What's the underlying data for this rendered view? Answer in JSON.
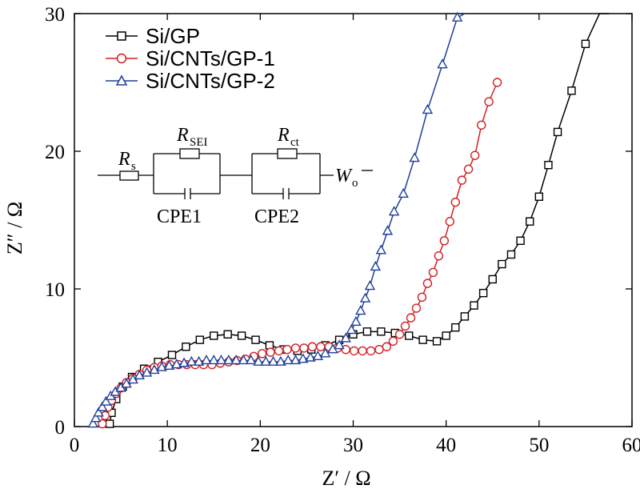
{
  "chart_data": {
    "type": "scatter",
    "xlabel": "Z′ / Ω",
    "ylabel": "Z″ / Ω",
    "xlim": [
      0,
      60
    ],
    "ylim": [
      0,
      30
    ],
    "xticks": [
      0,
      10,
      20,
      30,
      40,
      50,
      60
    ],
    "yticks": [
      0,
      10,
      20,
      30
    ],
    "legend_position": "top-left",
    "series": [
      {
        "name": "Si/GP",
        "color": "#000000",
        "marker": "square",
        "x": [
          3.8,
          4.0,
          4.5,
          5.2,
          6.2,
          7.5,
          9.0,
          10.5,
          12.0,
          13.5,
          15.0,
          16.5,
          18.0,
          19.5,
          21.0,
          22.5,
          24.0,
          25.5,
          27.0,
          28.5,
          30.0,
          31.5,
          33.0,
          34.5,
          36.0,
          37.5,
          39.0,
          40.0,
          41.0,
          42.0,
          43.0,
          44.0,
          45.0,
          46.0,
          47.0,
          48.0,
          49.0,
          50.0,
          51.0,
          52.0,
          53.5,
          55.0,
          56.5,
          57.5
        ],
        "y": [
          0.2,
          1.0,
          2.0,
          2.9,
          3.6,
          4.2,
          4.7,
          5.2,
          5.8,
          6.3,
          6.6,
          6.7,
          6.6,
          6.3,
          5.9,
          5.6,
          5.5,
          5.6,
          5.9,
          6.3,
          6.7,
          6.9,
          6.9,
          6.8,
          6.6,
          6.3,
          6.2,
          6.6,
          7.2,
          8.0,
          8.8,
          9.7,
          10.7,
          11.8,
          12.5,
          13.5,
          14.9,
          16.7,
          19.0,
          21.4,
          24.4,
          27.8,
          30.0,
          30.0
        ]
      },
      {
        "name": "Si/CNTs/GP-1",
        "color": "#d11f24",
        "marker": "circle",
        "x": [
          3.0,
          3.3,
          3.6,
          4.0,
          4.5,
          5.0,
          5.6,
          6.3,
          7.0,
          7.8,
          8.6,
          9.4,
          10.3,
          11.2,
          12.1,
          13.0,
          13.9,
          14.8,
          15.7,
          16.6,
          17.5,
          18.4,
          19.3,
          20.2,
          21.1,
          22.0,
          22.9,
          23.8,
          24.7,
          25.6,
          26.5,
          27.4,
          28.3,
          29.2,
          30.1,
          31.0,
          31.9,
          32.8,
          33.6,
          34.3,
          35.0,
          35.6,
          36.2,
          36.8,
          37.4,
          38.0,
          38.6,
          39.2,
          39.8,
          40.4,
          41.0,
          41.7,
          42.4,
          43.1,
          43.8,
          44.6,
          45.5
        ],
        "y": [
          0.2,
          0.8,
          1.4,
          1.9,
          2.4,
          2.8,
          3.2,
          3.5,
          3.8,
          4.1,
          4.3,
          4.4,
          4.5,
          4.5,
          4.5,
          4.5,
          4.5,
          4.5,
          4.6,
          4.7,
          4.8,
          4.9,
          5.1,
          5.3,
          5.4,
          5.5,
          5.6,
          5.7,
          5.7,
          5.8,
          5.8,
          5.8,
          5.7,
          5.6,
          5.5,
          5.5,
          5.5,
          5.6,
          5.8,
          6.2,
          6.7,
          7.3,
          7.9,
          8.6,
          9.4,
          10.4,
          11.2,
          12.4,
          13.5,
          14.9,
          16.3,
          17.9,
          18.7,
          19.7,
          21.9,
          23.6,
          25.0
        ]
      },
      {
        "name": "Si/CNTs/GP-2",
        "color": "#1f3f99",
        "marker": "triangle",
        "x": [
          2.0,
          2.3,
          2.6,
          3.0,
          3.4,
          3.9,
          4.4,
          5.0,
          5.6,
          6.3,
          7.0,
          7.8,
          8.6,
          9.4,
          10.2,
          11.0,
          11.8,
          12.6,
          13.4,
          14.2,
          15.0,
          15.8,
          16.6,
          17.4,
          18.2,
          19.0,
          19.8,
          20.6,
          21.4,
          22.2,
          23.0,
          23.8,
          24.6,
          25.4,
          26.2,
          27.0,
          27.8,
          28.5,
          29.2,
          29.8,
          30.3,
          30.8,
          31.3,
          31.8,
          32.4,
          33.0,
          33.7,
          34.4,
          35.4,
          36.6,
          38.0,
          39.6,
          41.2,
          42.0
        ],
        "y": [
          0.2,
          0.6,
          1.0,
          1.4,
          1.8,
          2.2,
          2.5,
          2.8,
          3.1,
          3.4,
          3.7,
          3.9,
          4.1,
          4.3,
          4.4,
          4.5,
          4.6,
          4.7,
          4.7,
          4.8,
          4.8,
          4.8,
          4.8,
          4.8,
          4.8,
          4.8,
          4.7,
          4.7,
          4.7,
          4.7,
          4.8,
          4.8,
          4.9,
          5.0,
          5.1,
          5.3,
          5.6,
          5.9,
          6.4,
          7.0,
          7.6,
          8.4,
          9.3,
          10.2,
          11.6,
          12.8,
          14.2,
          15.6,
          16.9,
          19.5,
          23.0,
          26.3,
          29.7,
          30.0
        ]
      }
    ]
  },
  "inset": {
    "rs_main": "R",
    "rs_sub": "s",
    "rsei_main": "R",
    "rsei_sub": "SEI",
    "rct_main": "R",
    "rct_sub": "ct",
    "wo_main": "W",
    "wo_sub": "o",
    "cpe1": "CPE1",
    "cpe2": "CPE2"
  }
}
